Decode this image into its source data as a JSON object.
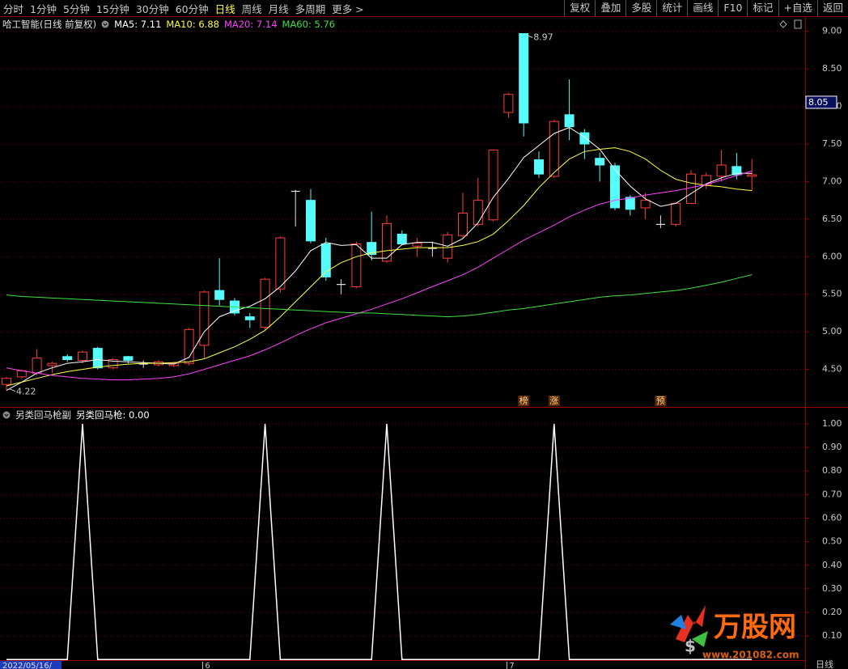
{
  "toolbar": {
    "tabs": [
      "分时",
      "1分钟",
      "5分钟",
      "15分钟",
      "30分钟",
      "60分钟",
      "日线",
      "周线",
      "月线",
      "多周期",
      "更多 >"
    ],
    "active_tab": 6,
    "buttons": [
      "复权",
      "叠加",
      "多股",
      "统计",
      "画线",
      "F10",
      "标记",
      "+自选",
      "返回"
    ]
  },
  "chart_data": [
    {
      "type": "candlestick",
      "title": "哈工智能(日线 前复权)",
      "categories": [
        null,
        null,
        null,
        null,
        null,
        null,
        null,
        null,
        null,
        null,
        null,
        null,
        null,
        "6",
        null,
        null,
        null,
        null,
        null,
        null,
        null,
        null,
        null,
        null,
        null,
        null,
        null,
        null,
        null,
        null,
        null,
        null,
        null,
        "7",
        null,
        null,
        null,
        null,
        null,
        null,
        null,
        null,
        null,
        null,
        null,
        null,
        null,
        null,
        null,
        null
      ],
      "open": [
        4.3,
        4.4,
        4.45,
        4.55,
        4.67,
        4.62,
        4.78,
        4.52,
        4.67,
        4.57,
        4.56,
        4.55,
        4.58,
        4.82,
        5.55,
        5.41,
        5.2,
        5.06,
        5.57,
        6.87,
        6.75,
        6.17,
        5.63,
        5.6,
        6.19,
        5.94,
        6.3,
        6.14,
        6.11,
        5.98,
        6.28,
        6.43,
        6.49,
        7.92,
        8.97,
        7.29,
        7.07,
        7.89,
        7.65,
        7.31,
        7.21,
        6.79,
        6.65,
        6.43,
        6.43,
        6.71,
        6.95,
        7.07,
        7.2,
        7.07
      ],
      "high": [
        4.4,
        4.5,
        4.77,
        4.6,
        4.7,
        4.75,
        4.8,
        4.65,
        4.68,
        4.62,
        4.62,
        4.6,
        5.05,
        5.55,
        5.98,
        5.45,
        5.25,
        5.72,
        6.27,
        6.89,
        6.9,
        6.25,
        5.7,
        6.2,
        6.6,
        6.55,
        6.35,
        6.25,
        6.2,
        6.33,
        6.85,
        7.05,
        7.43,
        8.18,
        8.97,
        7.4,
        7.82,
        8.36,
        7.7,
        7.38,
        7.25,
        6.82,
        6.85,
        6.55,
        6.73,
        7.15,
        7.12,
        7.42,
        7.38,
        7.3
      ],
      "low": [
        4.22,
        4.38,
        4.42,
        4.45,
        4.6,
        4.58,
        4.5,
        4.5,
        4.58,
        4.52,
        4.54,
        4.53,
        4.55,
        4.65,
        5.35,
        5.22,
        5.05,
        5.03,
        5.52,
        6.4,
        6.18,
        5.68,
        5.5,
        5.58,
        5.95,
        5.92,
        6.15,
        6.0,
        6.0,
        5.92,
        6.25,
        6.4,
        6.47,
        7.85,
        7.6,
        7.05,
        7.05,
        7.55,
        7.3,
        7.0,
        6.62,
        6.55,
        6.5,
        6.38,
        6.4,
        6.7,
        6.9,
        7.0,
        7.03,
        6.88
      ],
      "close": [
        4.38,
        4.48,
        4.65,
        4.58,
        4.63,
        4.73,
        4.52,
        4.63,
        4.62,
        4.57,
        4.6,
        4.58,
        5.03,
        5.53,
        5.43,
        5.25,
        5.16,
        5.7,
        6.25,
        6.87,
        6.21,
        5.73,
        5.63,
        6.17,
        6.03,
        6.44,
        6.17,
        6.18,
        6.11,
        6.29,
        6.58,
        6.75,
        7.42,
        8.16,
        7.78,
        7.1,
        7.8,
        7.73,
        7.5,
        7.22,
        6.65,
        6.63,
        6.75,
        6.43,
        6.71,
        7.1,
        7.08,
        7.22,
        7.09,
        7.09
      ],
      "up_color": "#ff3c3c",
      "down_color": "#54fcfc",
      "flat_color": "#e0e0e0",
      "series": [
        {
          "label": "MA5: 7.11",
          "color": "#ffffff",
          "values": [
            4.22,
            4.33,
            4.45,
            4.52,
            4.58,
            4.6,
            4.63,
            4.61,
            4.6,
            4.59,
            4.58,
            4.57,
            4.66,
            5.0,
            5.2,
            5.28,
            5.34,
            5.44,
            5.6,
            5.81,
            6.08,
            6.19,
            6.15,
            6.16,
            5.98,
            5.98,
            6.16,
            6.19,
            6.19,
            6.14,
            6.24,
            6.45,
            6.79,
            7.04,
            7.32,
            7.48,
            7.64,
            7.72,
            7.59,
            7.43,
            7.16,
            6.94,
            6.77,
            6.67,
            6.71,
            6.84,
            6.97,
            7.05,
            7.11,
            7.11
          ]
        },
        {
          "label": "MA10: 6.88",
          "color": "#ffff40",
          "values": [
            4.28,
            4.33,
            4.38,
            4.43,
            4.47,
            4.5,
            4.53,
            4.55,
            4.57,
            4.58,
            4.58,
            4.59,
            4.6,
            4.64,
            4.72,
            4.8,
            4.9,
            5.02,
            5.2,
            5.4,
            5.6,
            5.8,
            5.92,
            6.0,
            6.05,
            6.08,
            6.1,
            6.12,
            6.12,
            6.12,
            6.15,
            6.2,
            6.3,
            6.48,
            6.68,
            6.92,
            7.12,
            7.3,
            7.4,
            7.43,
            7.45,
            7.4,
            7.3,
            7.15,
            7.03,
            6.98,
            6.95,
            6.93,
            6.9,
            6.88
          ]
        },
        {
          "label": "MA20: 7.14",
          "color": "#ff40ff",
          "values": [
            4.52,
            4.48,
            4.45,
            4.42,
            4.4,
            4.38,
            4.37,
            4.36,
            4.36,
            4.37,
            4.38,
            4.4,
            4.44,
            4.5,
            4.56,
            4.62,
            4.68,
            4.76,
            4.85,
            4.95,
            5.04,
            5.12,
            5.18,
            5.24,
            5.3,
            5.37,
            5.44,
            5.52,
            5.6,
            5.68,
            5.76,
            5.86,
            5.98,
            6.1,
            6.22,
            6.32,
            6.42,
            6.53,
            6.62,
            6.7,
            6.75,
            6.78,
            6.82,
            6.85,
            6.88,
            6.92,
            6.96,
            7.02,
            7.08,
            7.14
          ]
        },
        {
          "label": "MA60: 5.76",
          "color": "#40e040",
          "values": [
            5.49,
            5.47,
            5.46,
            5.45,
            5.44,
            5.43,
            5.42,
            5.41,
            5.4,
            5.39,
            5.38,
            5.37,
            5.36,
            5.35,
            5.34,
            5.33,
            5.32,
            5.31,
            5.3,
            5.29,
            5.28,
            5.27,
            5.26,
            5.25,
            5.25,
            5.24,
            5.23,
            5.22,
            5.21,
            5.2,
            5.21,
            5.23,
            5.26,
            5.29,
            5.31,
            5.34,
            5.37,
            5.4,
            5.43,
            5.46,
            5.48,
            5.49,
            5.51,
            5.53,
            5.55,
            5.58,
            5.62,
            5.66,
            5.71,
            5.76
          ]
        }
      ],
      "ylim": [
        4.0,
        9.18
      ],
      "yticks": [
        {
          "value": 9,
          "label": "9.00"
        },
        {
          "value": 8.5,
          "label": "8.50"
        },
        {
          "value": 8,
          "label": "8.00"
        },
        {
          "value": 7.5,
          "label": "7.50"
        },
        {
          "value": 7,
          "label": "7.00"
        },
        {
          "value": 6.5,
          "label": "6.50"
        },
        {
          "value": 6,
          "label": "6.00"
        },
        {
          "value": 5.5,
          "label": "5.50"
        },
        {
          "value": 5,
          "label": "5.00"
        },
        {
          "value": 4.5,
          "label": "4.50"
        }
      ],
      "grid": true,
      "cursor_price": 8.05,
      "badges": [
        {
          "index": 34,
          "text": "榜"
        },
        {
          "index": 36,
          "text": "涨"
        },
        {
          "index": 43,
          "text": "预"
        }
      ],
      "cursor_date": "2022/05/16/",
      "period_label": "日线"
    },
    {
      "type": "line",
      "title": "另类回马枪副",
      "series": [
        {
          "label": "另类回马枪: 0.00",
          "color": "#ffffff",
          "values": [
            0,
            0,
            0,
            0,
            0,
            1,
            0,
            0,
            0,
            0,
            0,
            0,
            0,
            0,
            0,
            0,
            0,
            1,
            0,
            0,
            0,
            0,
            0,
            0,
            0,
            1,
            0,
            0,
            0,
            0,
            0,
            0,
            0,
            0,
            0,
            0,
            1,
            0,
            0,
            0,
            0,
            0,
            0,
            0,
            0,
            0,
            0,
            0,
            0,
            0
          ]
        }
      ],
      "ylim": [
        -0.04,
        1.065
      ],
      "yticks": [
        {
          "value": 1,
          "label": "1.00"
        },
        {
          "value": 0.9,
          "label": "0.90"
        },
        {
          "value": 0.8,
          "label": "0.80"
        },
        {
          "value": 0.7,
          "label": "0.70"
        },
        {
          "value": 0.6,
          "label": "0.60"
        },
        {
          "value": 0.5,
          "label": "0.50"
        },
        {
          "value": 0.4,
          "label": "0.40"
        },
        {
          "value": 0.3,
          "label": "0.30"
        },
        {
          "value": 0.2,
          "label": "0.20"
        },
        {
          "value": 0.1,
          "label": "0.10"
        }
      ],
      "grid": true
    }
  ],
  "watermark": {
    "title": "万股网",
    "url": "www.201082.com"
  }
}
